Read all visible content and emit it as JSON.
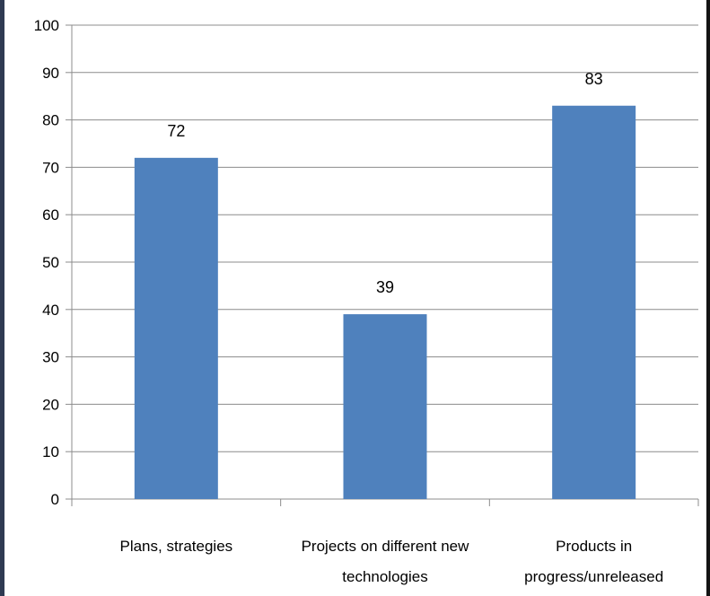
{
  "chart_data": {
    "type": "bar",
    "title": "",
    "xlabel": "",
    "ylabel": "",
    "categories": [
      [
        "Plans, strategies"
      ],
      [
        "Projects on different new",
        "technologies"
      ],
      [
        "Products in",
        "progress/unreleased"
      ]
    ],
    "values": [
      72,
      39,
      83
    ],
    "data_labels": [
      "72",
      "39",
      "83"
    ],
    "ylim": [
      0,
      100
    ],
    "yticks": [
      0,
      10,
      20,
      30,
      40,
      50,
      60,
      70,
      80,
      90,
      100
    ],
    "grid": true,
    "legend": "none",
    "bar_color": "#4f81bd",
    "grid_color": "#8c8c8c"
  }
}
